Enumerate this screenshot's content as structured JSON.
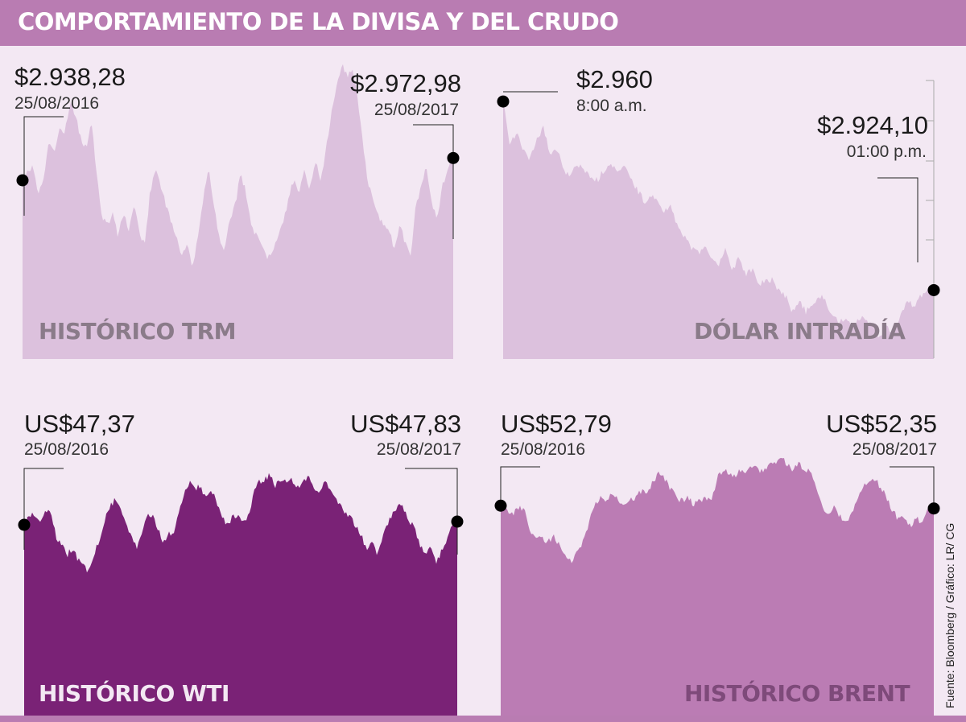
{
  "title": "COMPORTAMIENTO DE LA DIVISA Y DEL CRUDO",
  "source": "Fuente: Bloomberg / Gráfico: LR/ CG",
  "colors": {
    "background": "#f3e8f3",
    "header": "#b97cb2",
    "trm_fill": "#dcc1dd",
    "wti_fill": "#7a2276",
    "brent_fill": "#bb7cb4",
    "light_title": "#8a7b89",
    "wti_title": "#f3e8f3",
    "brent_title": "#7e4a7a"
  },
  "chart_data": [
    {
      "id": "trm",
      "type": "area",
      "title": "HISTÓRICO TRM",
      "start": {
        "value_label": "$2.938,28",
        "date": "25/08/2016",
        "value": 2938.28
      },
      "end": {
        "value_label": "$2.972,98",
        "date": "25/08/2017",
        "value": 2972.98
      },
      "ylim": [
        2660,
        3100
      ],
      "values": [
        2938.28,
        2955,
        2960,
        2915,
        2945,
        3000,
        2980,
        3020,
        3015,
        3060,
        3040,
        3000,
        2990,
        3030,
        2940,
        2880,
        2870,
        2885,
        2850,
        2890,
        2860,
        2900,
        2855,
        2840,
        2920,
        2960,
        2930,
        2900,
        2870,
        2850,
        2820,
        2840,
        2800,
        2850,
        2910,
        2960,
        2900,
        2850,
        2830,
        2880,
        2900,
        2950,
        2920,
        2870,
        2850,
        2840,
        2820,
        2830,
        2850,
        2870,
        2910,
        2940,
        2920,
        2960,
        2920,
        2970,
        2940,
        2980,
        3040,
        3080,
        3120,
        3100,
        3110,
        3070,
        3000,
        2930,
        2910,
        2880,
        2870,
        2860,
        2830,
        2870,
        2840,
        2820,
        2900,
        2930,
        2960,
        2900,
        2880,
        2930,
        2960,
        2972.98
      ]
    },
    {
      "id": "intraday",
      "type": "area",
      "title": "DÓLAR INTRADÍA",
      "start": {
        "value_label": "$2.960",
        "date": "8:00 a.m.",
        "value": 2960
      },
      "end": {
        "value_label": "$2.924,10",
        "date": "01:00 p.m.",
        "value": 2924.1
      },
      "ylim": [
        2911,
        2964
      ],
      "values": [
        2960,
        2952,
        2954,
        2951,
        2949,
        2953,
        2955,
        2950,
        2951,
        2947,
        2946,
        2948,
        2947,
        2946,
        2945,
        2947,
        2948,
        2947,
        2948,
        2945,
        2943,
        2941,
        2942,
        2941,
        2939,
        2940,
        2936,
        2934,
        2932,
        2931,
        2933,
        2930,
        2929,
        2932,
        2928,
        2930,
        2927,
        2928,
        2925,
        2926,
        2926,
        2924,
        2923,
        2920,
        2922,
        2920,
        2921,
        2923,
        2922,
        2919,
        2918,
        2919,
        2917,
        2919,
        2918,
        2917,
        2915,
        2917,
        2916,
        2919,
        2922,
        2921,
        2923,
        2924,
        2924.1
      ]
    },
    {
      "id": "wti",
      "type": "area",
      "title": "HISTÓRICO WTI",
      "start": {
        "value_label": "US$47,37",
        "date": "25/08/2016",
        "value": 47.37
      },
      "end": {
        "value_label": "US$47,83",
        "date": "25/08/2017",
        "value": 47.83
      },
      "ylim": [
        20,
        58
      ],
      "values": [
        47.37,
        48.5,
        49.0,
        48.0,
        49.5,
        49.0,
        45.5,
        44.5,
        43.0,
        44.0,
        42.5,
        41.5,
        40.5,
        43.0,
        45.0,
        48.0,
        50.0,
        51.0,
        50.0,
        47.5,
        46.0,
        44.0,
        46.5,
        49.0,
        48.5,
        47.0,
        45.0,
        46.0,
        46.5,
        49.0,
        52.0,
        53.5,
        52.5,
        53.0,
        51.0,
        52.5,
        50.5,
        48.5,
        47.5,
        48.5,
        49.0,
        48.0,
        48.5,
        52.0,
        53.5,
        54.0,
        54.5,
        53.0,
        54.0,
        53.5,
        54.0,
        52.5,
        53.0,
        54.5,
        53.0,
        52.0,
        53.5,
        53.0,
        51.0,
        50.5,
        49.0,
        48.5,
        47.0,
        46.0,
        44.0,
        45.0,
        43.0,
        45.5,
        47.5,
        49.0,
        50.5,
        49.5,
        48.0,
        47.0,
        44.5,
        43.0,
        44.5,
        42.0,
        43.5,
        45.0,
        47.0,
        47.83
      ]
    },
    {
      "id": "brent",
      "type": "area",
      "title": "HISTÓRICO BRENT",
      "start": {
        "value_label": "US$52,79",
        "date": "25/08/2016",
        "value": 52.79
      },
      "end": {
        "value_label": "US$52,35",
        "date": "25/08/2017",
        "value": 52.35
      },
      "ylim": [
        20,
        62
      ],
      "values": [
        52.79,
        52.0,
        51.5,
        52.5,
        52.0,
        49.0,
        47.5,
        48.0,
        47.0,
        48.0,
        46.5,
        45.5,
        44.0,
        45.5,
        47.0,
        50.0,
        53.0,
        54.0,
        53.5,
        55.0,
        53.5,
        52.5,
        53.5,
        54.0,
        55.0,
        54.5,
        56.5,
        58.0,
        57.0,
        55.5,
        54.0,
        53.5,
        54.0,
        53.0,
        53.5,
        54.0,
        53.5,
        57.0,
        58.5,
        58.0,
        57.5,
        58.5,
        58.0,
        59.0,
        58.5,
        58.0,
        59.5,
        59.0,
        60.5,
        59.0,
        58.5,
        59.5,
        58.0,
        58.5,
        55.0,
        53.0,
        51.0,
        52.5,
        51.0,
        50.0,
        51.5,
        53.5,
        56.0,
        56.5,
        57.0,
        55.5,
        54.0,
        52.0,
        50.5,
        51.0,
        49.5,
        51.0,
        50.0,
        52.0,
        52.35
      ]
    }
  ]
}
